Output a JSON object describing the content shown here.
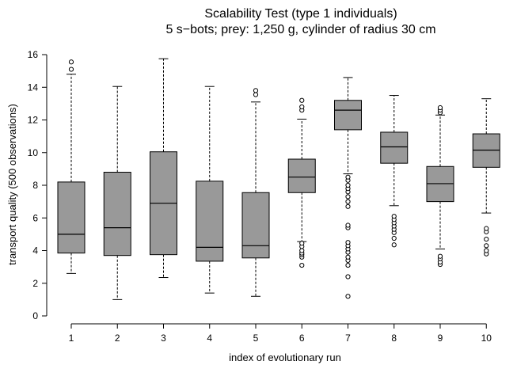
{
  "chart_data": {
    "type": "box",
    "title": "Scalability Test (type 1 individuals)",
    "subtitle": "5 s−bots; prey: 1,250 g, cylinder of radius 30 cm",
    "xlabel": "index of evolutionary run",
    "ylabel": "transport quality (500 observations)",
    "ylim": [
      0,
      16
    ],
    "yticks": [
      0,
      2,
      4,
      6,
      8,
      10,
      12,
      14,
      16
    ],
    "grid": false,
    "colors": {
      "box_fill": "#999999",
      "stroke": "#000000"
    },
    "categories": [
      "1",
      "2",
      "3",
      "4",
      "5",
      "6",
      "7",
      "8",
      "9",
      "10"
    ],
    "boxes": [
      {
        "category": "1",
        "whisker_low": 2.6,
        "q1": 3.85,
        "median": 5.0,
        "q3": 8.2,
        "whisker_high": 14.8,
        "outliers": [
          15.1,
          15.55
        ]
      },
      {
        "category": "2",
        "whisker_low": 1.0,
        "q1": 3.7,
        "median": 5.4,
        "q3": 8.8,
        "whisker_high": 14.05,
        "outliers": []
      },
      {
        "category": "3",
        "whisker_low": 2.35,
        "q1": 3.75,
        "median": 6.9,
        "q3": 10.05,
        "whisker_high": 15.75,
        "outliers": []
      },
      {
        "category": "4",
        "whisker_low": 1.4,
        "q1": 3.35,
        "median": 4.2,
        "q3": 8.25,
        "whisker_high": 14.05,
        "outliers": []
      },
      {
        "category": "5",
        "whisker_low": 1.2,
        "q1": 3.55,
        "median": 4.3,
        "q3": 7.55,
        "whisker_high": 13.1,
        "outliers": [
          13.55,
          13.8
        ]
      },
      {
        "category": "6",
        "whisker_low": 4.55,
        "q1": 7.55,
        "median": 8.5,
        "q3": 9.6,
        "whisker_high": 12.05,
        "outliers": [
          3.1,
          3.6,
          3.75,
          3.85,
          4.0,
          4.25,
          4.45,
          12.6,
          12.8,
          13.2
        ]
      },
      {
        "category": "7",
        "whisker_low": 8.7,
        "q1": 11.4,
        "median": 12.6,
        "q3": 13.2,
        "whisker_high": 14.6,
        "outliers": [
          1.2,
          2.4,
          3.1,
          3.4,
          3.6,
          3.9,
          4.1,
          4.3,
          4.5,
          5.4,
          5.55,
          6.7,
          7.0,
          7.3,
          7.6,
          7.8,
          8.0,
          8.3,
          8.5
        ]
      },
      {
        "category": "8",
        "whisker_low": 6.75,
        "q1": 9.35,
        "median": 10.35,
        "q3": 11.25,
        "whisker_high": 13.5,
        "outliers": [
          4.35,
          4.75,
          5.1,
          5.3,
          5.5,
          5.7,
          5.9,
          6.1
        ]
      },
      {
        "category": "9",
        "whisker_low": 4.1,
        "q1": 7.0,
        "median": 8.1,
        "q3": 9.15,
        "whisker_high": 12.3,
        "outliers": [
          3.15,
          3.3,
          3.5,
          3.65,
          12.45,
          12.6,
          12.75
        ]
      },
      {
        "category": "10",
        "whisker_low": 6.3,
        "q1": 9.1,
        "median": 10.15,
        "q3": 11.15,
        "whisker_high": 13.3,
        "outliers": [
          3.8,
          4.0,
          4.3,
          4.7,
          5.15,
          5.35
        ]
      }
    ]
  }
}
